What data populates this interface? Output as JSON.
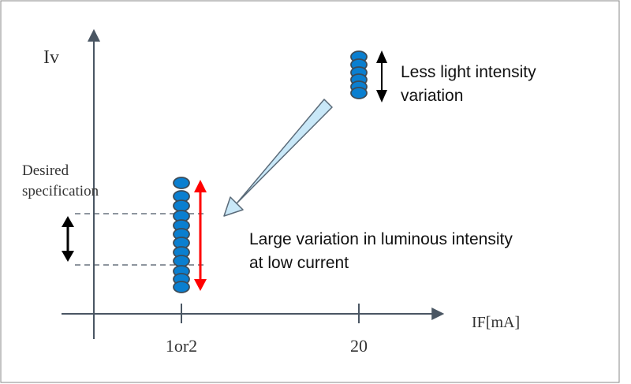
{
  "axes": {
    "y_label": "Iv",
    "x_label": "IF[mA]",
    "x_ticks": [
      "1or2",
      "20"
    ]
  },
  "labels": {
    "desired_line1": "Desired",
    "desired_line2": "specification",
    "low_current_line1": "Large variation in luminous intensity",
    "low_current_line2": "at low current",
    "high_current_line1": "Less light intensity",
    "high_current_line2": "variation"
  },
  "colors": {
    "led": "#0a7fd0",
    "led_stroke": "#3d4b57",
    "variation_arrow": "#ff0000",
    "transition_arrow": "#c9e8f8",
    "axis": "#4a5663"
  }
}
